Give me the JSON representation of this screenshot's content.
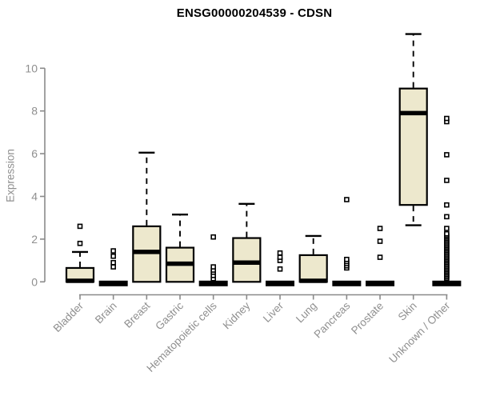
{
  "chart_data": {
    "type": "boxplot",
    "title": "ENSG00000204539 - CDSN",
    "ylabel": "Expression",
    "xlabel": "",
    "ylim": [
      0,
      11.9
    ],
    "yticks": [
      0,
      2,
      4,
      6,
      8,
      10
    ],
    "grid": false,
    "legend": "none",
    "colors": {
      "box_fill": "#ede8cd",
      "box_stroke": "#000000",
      "median": "#000000",
      "whisker": "#000000",
      "outlier": "#000000",
      "axis": "#8a8a8a",
      "tick_text": "#8f8f8f",
      "title_text": "#000000",
      "background": "#ffffff"
    },
    "categories": [
      "Bladder",
      "Brain",
      "Breast",
      "Gastric",
      "Hematopoietic cells",
      "Kidney",
      "Liver",
      "Lung",
      "Pancreas",
      "Prostate",
      "Skin",
      "Unknown / Other"
    ],
    "boxes": [
      {
        "category": "Bladder",
        "q1": 0,
        "median": 0.05,
        "q3": 0.65,
        "whisker_low": 0,
        "whisker_high": 1.4,
        "outliers": [
          1.8,
          2.6
        ]
      },
      {
        "category": "Brain",
        "q1": 0,
        "median": 0,
        "q3": 0,
        "whisker_low": 0,
        "whisker_high": 0,
        "outliers": [
          0.7,
          0.9,
          1.2,
          1.45
        ]
      },
      {
        "category": "Breast",
        "q1": 0,
        "median": 1.4,
        "q3": 2.6,
        "whisker_low": 0,
        "whisker_high": 6.05,
        "outliers": []
      },
      {
        "category": "Gastric",
        "q1": 0,
        "median": 0.85,
        "q3": 1.6,
        "whisker_low": 0,
        "whisker_high": 3.15,
        "outliers": []
      },
      {
        "category": "Hematopoietic cells",
        "q1": 0,
        "median": 0,
        "q3": 0,
        "whisker_low": 0,
        "whisker_high": 0,
        "outliers": [
          0.15,
          0.3,
          0.45,
          0.55,
          0.7,
          2.1
        ]
      },
      {
        "category": "Kidney",
        "q1": 0,
        "median": 0.9,
        "q3": 2.05,
        "whisker_low": 0,
        "whisker_high": 3.65,
        "outliers": []
      },
      {
        "category": "Liver",
        "q1": 0,
        "median": 0,
        "q3": 0,
        "whisker_low": 0,
        "whisker_high": 0,
        "outliers": [
          0.6,
          1.0,
          1.15,
          1.35
        ]
      },
      {
        "category": "Lung",
        "q1": 0,
        "median": 0.05,
        "q3": 1.25,
        "whisker_low": 0,
        "whisker_high": 2.15,
        "outliers": []
      },
      {
        "category": "Pancreas",
        "q1": 0,
        "median": 0,
        "q3": 0,
        "whisker_low": 0,
        "whisker_high": 0,
        "outliers": [
          0.65,
          0.75,
          0.85,
          0.95,
          1.05,
          3.85
        ]
      },
      {
        "category": "Prostate",
        "q1": 0,
        "median": 0,
        "q3": 0,
        "whisker_low": 0,
        "whisker_high": 0,
        "outliers": [
          1.15,
          1.9,
          2.5
        ]
      },
      {
        "category": "Skin",
        "q1": 3.6,
        "median": 7.9,
        "q3": 9.05,
        "whisker_low": 2.65,
        "whisker_high": 11.6,
        "outliers": []
      },
      {
        "category": "Unknown / Other",
        "q1": 0,
        "median": 0,
        "q3": 0,
        "whisker_low": 0,
        "whisker_high": 0,
        "outliers": [
          0.15,
          0.22,
          0.29,
          0.36,
          0.43,
          0.5,
          0.57,
          0.64,
          0.71,
          0.78,
          0.85,
          0.92,
          0.99,
          1.06,
          1.13,
          1.2,
          1.27,
          1.34,
          1.41,
          1.48,
          1.55,
          1.62,
          1.69,
          1.76,
          1.83,
          1.9,
          1.97,
          2.04,
          2.11,
          2.18,
          2.25,
          2.5,
          3.05,
          3.6,
          4.75,
          5.95,
          7.5,
          7.65
        ]
      }
    ]
  }
}
